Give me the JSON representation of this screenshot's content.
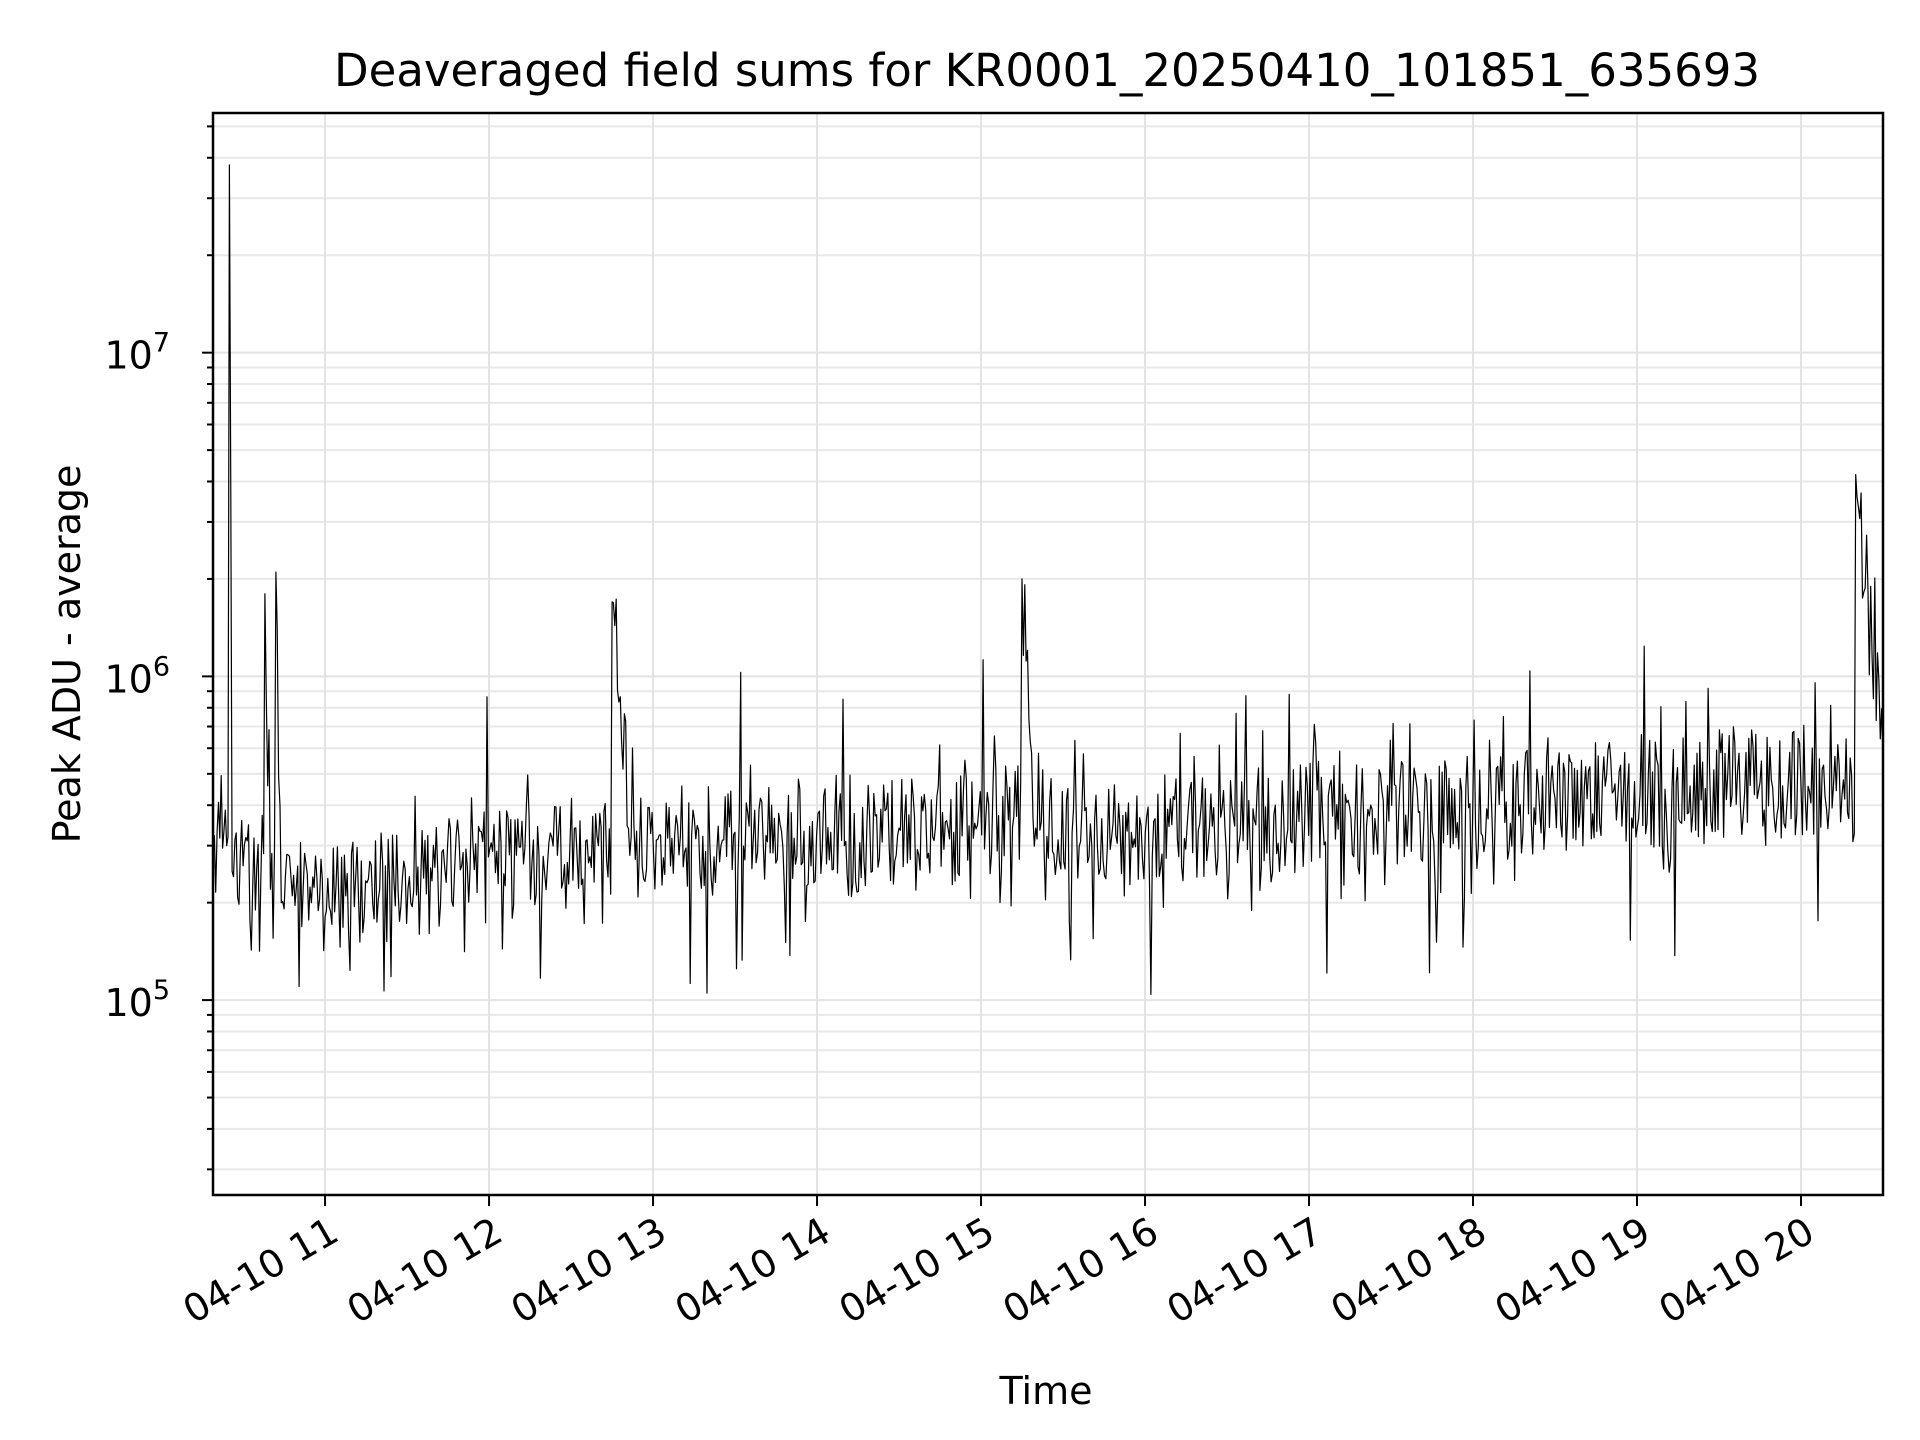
{
  "chart_data": {
    "type": "line",
    "title": "Deaveraged field sums for KR0001_20250410_101851_635693",
    "xlabel": "Time",
    "ylabel": "Peak ADU - average",
    "yscale": "log",
    "grid": true,
    "x_range": [
      "2025-04-10 10:19",
      "2025-04-10 20:30"
    ],
    "ylim": [
      25000,
      55000000
    ],
    "x_ticks": [
      {
        "value": "2025-04-10 11:00",
        "label": "04-10 11"
      },
      {
        "value": "2025-04-10 12:00",
        "label": "04-10 12"
      },
      {
        "value": "2025-04-10 13:00",
        "label": "04-10 13"
      },
      {
        "value": "2025-04-10 14:00",
        "label": "04-10 14"
      },
      {
        "value": "2025-04-10 15:00",
        "label": "04-10 15"
      },
      {
        "value": "2025-04-10 16:00",
        "label": "04-10 16"
      },
      {
        "value": "2025-04-10 17:00",
        "label": "04-10 17"
      },
      {
        "value": "2025-04-10 18:00",
        "label": "04-10 18"
      },
      {
        "value": "2025-04-10 19:00",
        "label": "04-10 19"
      },
      {
        "value": "2025-04-10 20:00",
        "label": "04-10 20"
      }
    ],
    "y_ticks": [
      {
        "value": 100000,
        "base": "10",
        "exp": "5"
      },
      {
        "value": 1000000,
        "base": "10",
        "exp": "6"
      },
      {
        "value": 10000000,
        "base": "10",
        "exp": "7"
      }
    ],
    "line_color": "#000000",
    "series": [
      {
        "x": [
          "2025-04-10 10:19",
          "2025-04-10 10:24",
          "2025-04-10 10:25",
          "2025-04-10 10:26",
          "2025-04-10 10:30",
          "2025-04-10 10:38",
          "2025-04-10 10:40",
          "2025-04-10 10:42",
          "2025-04-10 10:44",
          "2025-04-10 10:48",
          "2025-04-10 10:55",
          "2025-04-10 11:05",
          "2025-04-10 11:20",
          "2025-04-10 11:35",
          "2025-04-10 11:50",
          "2025-04-10 12:10",
          "2025-04-10 12:25",
          "2025-04-10 12:40",
          "2025-04-10 12:45",
          "2025-04-10 12:52",
          "2025-04-10 12:55",
          "2025-04-10 13:10",
          "2025-04-10 13:30",
          "2025-04-10 14:05",
          "2025-04-10 14:10",
          "2025-04-10 14:30",
          "2025-04-10 14:50",
          "2025-04-10 15:10",
          "2025-04-10 15:15",
          "2025-04-10 15:20",
          "2025-04-10 15:40",
          "2025-04-10 15:55",
          "2025-04-10 16:20",
          "2025-04-10 16:40",
          "2025-04-10 17:05",
          "2025-04-10 17:20",
          "2025-04-10 17:40",
          "2025-04-10 18:05",
          "2025-04-10 18:30",
          "2025-04-10 18:55",
          "2025-04-10 19:25",
          "2025-04-10 19:45",
          "2025-04-10 20:00",
          "2025-04-10 20:15",
          "2025-04-10 20:20",
          "2025-04-10 20:30"
        ],
        "y": [
          280000,
          300000,
          38000000,
          250000,
          260000,
          1800000,
          220000,
          2100000,
          200000,
          210000,
          200000,
          210000,
          220000,
          230000,
          260000,
          280000,
          280000,
          300000,
          1700000,
          320000,
          290000,
          320000,
          330000,
          330000,
          300000,
          340000,
          330000,
          360000,
          2000000,
          340000,
          350000,
          330000,
          350000,
          360000,
          370000,
          360000,
          380000,
          390000,
          420000,
          430000,
          450000,
          470000,
          460000,
          430000,
          4200000,
          560000
        ]
      }
    ]
  }
}
